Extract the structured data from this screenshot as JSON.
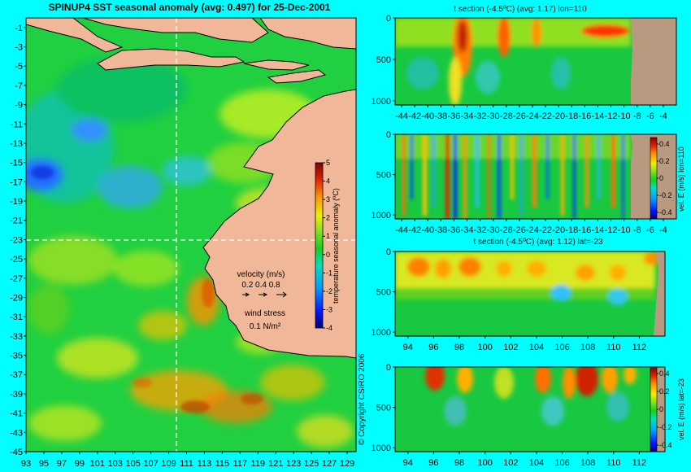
{
  "title": "SPINUP4 SST seasonal anomaly (avg: 0.497) for 25-Dec-2001",
  "copyright": "© Copyright CSIRO 2006",
  "colors": {
    "background": "#00ffff",
    "land": "#f0b898",
    "bathy": "#b89a80",
    "dashed_line": "#ffffff"
  },
  "map": {
    "colorbar_label": "temperature seasonal anomaly (ºC)",
    "colorbar_ticks": [
      "5",
      "4",
      "3",
      "2",
      "1",
      "0",
      "-1",
      "-2",
      "-3",
      "-4"
    ],
    "velocity_label": "velocity (m/s)",
    "velocity_scale": "0.2 0.4 0.8",
    "wind_label": "wind stress",
    "wind_scale": "0.1 N/m²"
  },
  "panels": {
    "p1": {
      "title": "t section (-4.5ºC) (avg: 1.17) lon=110"
    },
    "p2": {
      "colorbar_label": "vel. E (m/s) lon=110",
      "colorbar_ticks": [
        "0.4",
        "0.2",
        "0",
        "-0.2",
        "-0.4"
      ]
    },
    "p3": {
      "title": "t section (-4.5ºC) (avg: 1.12) lat=-23"
    },
    "p4": {
      "colorbar_label": "vel. E (m/s) lat=-23",
      "colorbar_ticks": [
        "0.4",
        "0.2",
        "0",
        "-0.2",
        "-0.4"
      ]
    }
  },
  "chart_data": [
    {
      "type": "heatmap",
      "title": "SPINUP4 SST seasonal anomaly (avg: 0.497) for 25-Dec-2001",
      "x_ticks": [
        "93",
        "95",
        "97",
        "99",
        "101",
        "103",
        "105",
        "107",
        "109",
        "111",
        "113",
        "115",
        "117",
        "119",
        "121",
        "123",
        "125",
        "127",
        "129"
      ],
      "y_ticks": [
        "-1",
        "-3",
        "-5",
        "-7",
        "-9",
        "-11",
        "-13",
        "-15",
        "-17",
        "-19",
        "-21",
        "-23",
        "-25",
        "-27",
        "-29",
        "-31",
        "-33",
        "-35",
        "-37",
        "-39",
        "-41",
        "-43",
        "-45"
      ],
      "xlim": [
        93,
        130
      ],
      "ylim": [
        -45,
        0
      ],
      "section_lines": {
        "lon": 110,
        "lat": -23
      },
      "colorbar": {
        "label": "temperature seasonal anomaly (ºC)",
        "range": [
          -4,
          5
        ]
      }
    },
    {
      "type": "heatmap",
      "title": "t section (-4.5ºC) (avg: 1.17) lon=110",
      "x_ticks": [
        "-44",
        "-42",
        "-40",
        "-38",
        "-36",
        "-34",
        "-32",
        "-30",
        "-28",
        "-26",
        "-24",
        "-22",
        "-20",
        "-18",
        "-16",
        "-14",
        "-12",
        "-10",
        "-8",
        "-6",
        "-4"
      ],
      "y_ticks": [
        "0",
        "500",
        "1000"
      ],
      "xlim": [
        -45,
        -2
      ],
      "ylim": [
        1050,
        0
      ]
    },
    {
      "type": "heatmap",
      "title": "",
      "x_ticks": [
        "-44",
        "-42",
        "-40",
        "-38",
        "-36",
        "-34",
        "-32",
        "-30",
        "-28",
        "-26",
        "-24",
        "-22",
        "-20",
        "-18",
        "-16",
        "-14",
        "-12",
        "-10",
        "-8",
        "-6",
        "-4"
      ],
      "y_ticks": [
        "0",
        "500",
        "1000"
      ],
      "xlim": [
        -45,
        -2
      ],
      "ylim": [
        1050,
        0
      ],
      "colorbar": {
        "label": "vel. E (m/s) lon=110",
        "range": [
          -0.4,
          0.45
        ]
      }
    },
    {
      "type": "heatmap",
      "title": "t section (-4.5ºC) (avg: 1.12) lat=-23",
      "x_ticks": [
        "94",
        "96",
        "98",
        "100",
        "102",
        "104",
        "106",
        "108",
        "110",
        "112"
      ],
      "y_ticks": [
        "0",
        "500",
        "1000"
      ],
      "xlim": [
        93,
        114
      ],
      "ylim": [
        1050,
        0
      ]
    },
    {
      "type": "heatmap",
      "title": "",
      "x_ticks": [
        "94",
        "96",
        "98",
        "100",
        "102",
        "104",
        "106",
        "108",
        "110",
        "112"
      ],
      "y_ticks": [
        "0",
        "500",
        "1000"
      ],
      "xlim": [
        93,
        114
      ],
      "ylim": [
        1050,
        0
      ],
      "colorbar": {
        "label": "vel. E (m/s) lat=-23",
        "range": [
          -0.4,
          0.45
        ]
      }
    }
  ]
}
